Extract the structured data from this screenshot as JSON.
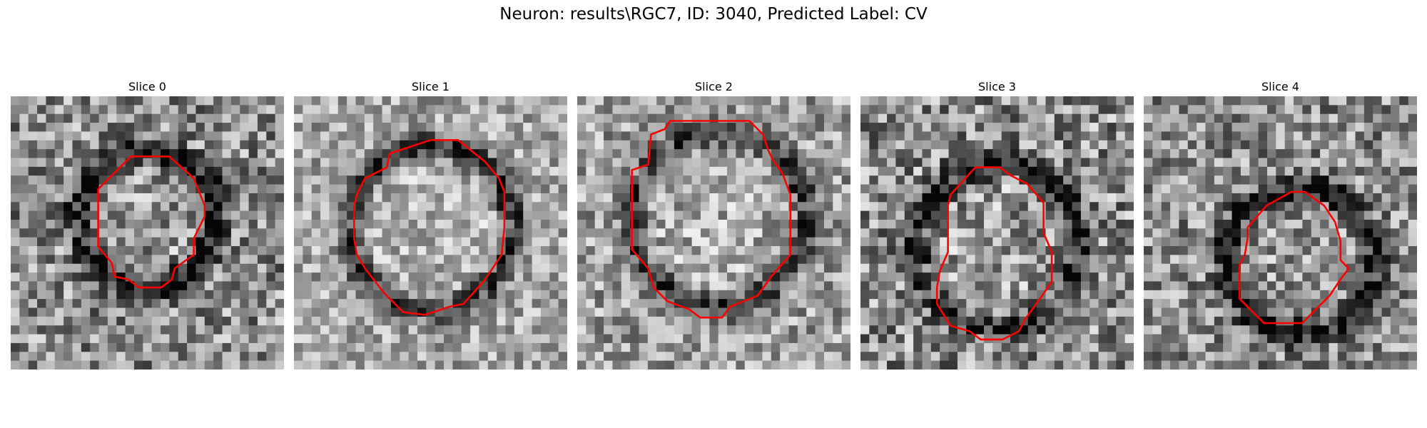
{
  "figure": {
    "title": "Neuron: results\\RGC7, ID: 3040, Predicted Label: CV",
    "contour_color": "#ff0000"
  },
  "panels": [
    {
      "title": "Slice 0"
    },
    {
      "title": "Slice 1"
    },
    {
      "title": "Slice 2"
    },
    {
      "title": "Slice 3"
    },
    {
      "title": "Slice 4"
    }
  ]
}
